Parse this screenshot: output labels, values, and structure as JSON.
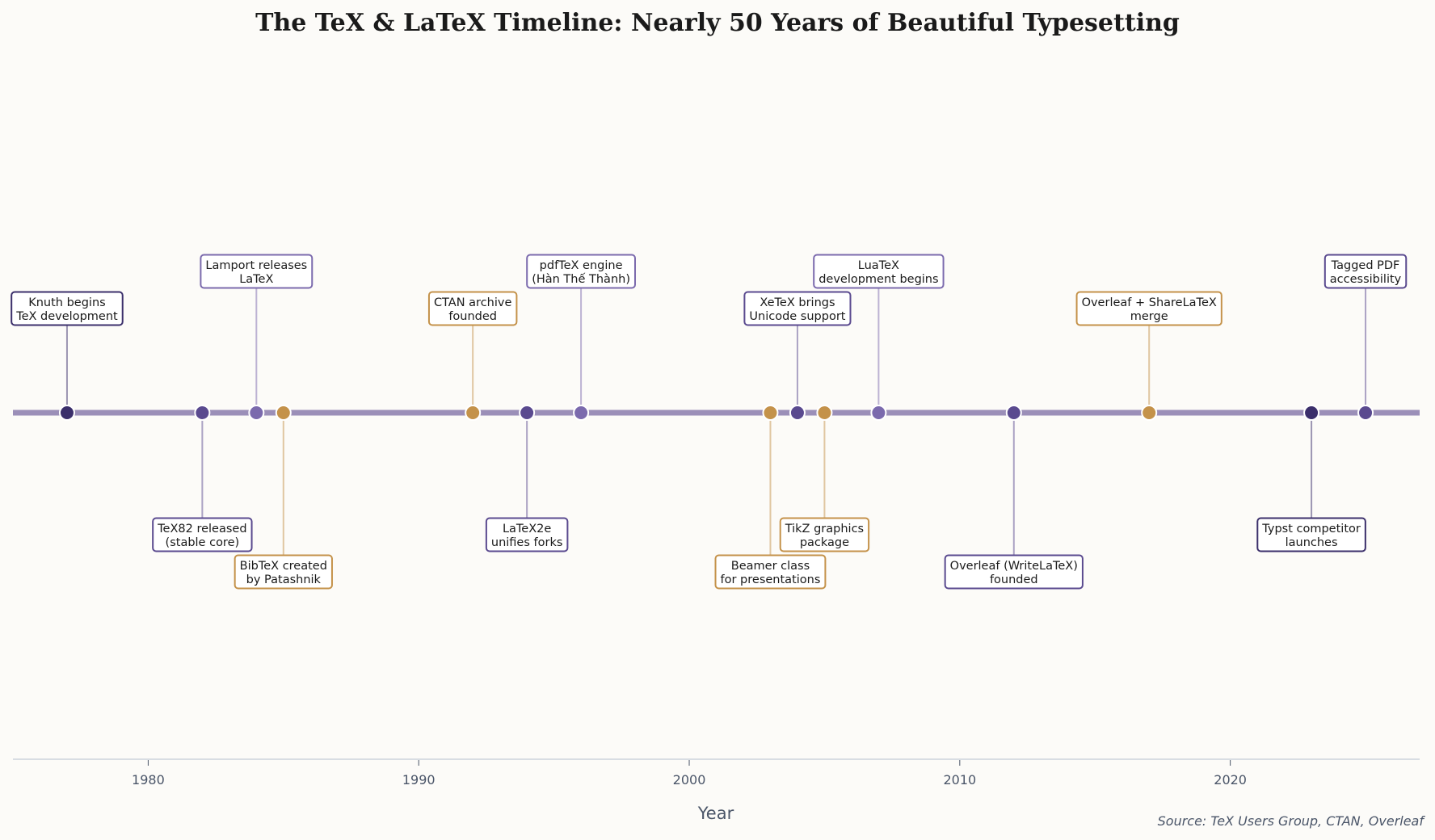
{
  "chart_data": {
    "type": "timeline",
    "title": "The TeX & LaTeX Timeline: Nearly 50 Years of Beautiful Typesetting",
    "xlabel": "Year",
    "source": "Source: TeX Users Group, CTAN, Overleaf",
    "xlim": [
      1975,
      2027
    ],
    "xticks": [
      1980,
      1990,
      2000,
      2010,
      2020
    ],
    "grid": false,
    "colors": {
      "timeline": "#9b8fb8",
      "dark": "#3b2f6b",
      "medium": "#5a4a8f",
      "light": "#7b6aad",
      "gold": "#c4924a",
      "background": "#fcfbf8"
    },
    "events": [
      {
        "year": 1977,
        "label": [
          "Knuth begins",
          "TeX development"
        ],
        "side": "above",
        "tier": 1,
        "color": "dark"
      },
      {
        "year": 1982,
        "label": [
          "TeX82 released",
          "(stable core)"
        ],
        "side": "below",
        "tier": 1,
        "color": "medium"
      },
      {
        "year": 1984,
        "label": [
          "Lamport releases",
          "LaTeX"
        ],
        "side": "above",
        "tier": 2,
        "color": "light"
      },
      {
        "year": 1985,
        "label": [
          "BibTeX created",
          "by Patashnik"
        ],
        "side": "below",
        "tier": 2,
        "color": "gold"
      },
      {
        "year": 1992,
        "label": [
          "CTAN archive",
          "founded"
        ],
        "side": "above",
        "tier": 1,
        "color": "gold"
      },
      {
        "year": 1994,
        "label": [
          "LaTeX2e",
          "unifies forks"
        ],
        "side": "below",
        "tier": 1,
        "color": "medium"
      },
      {
        "year": 1996,
        "label": [
          "pdfTeX engine",
          "(Hàn Thế Thành)"
        ],
        "side": "above",
        "tier": 2,
        "color": "light"
      },
      {
        "year": 2003,
        "label": [
          "Beamer class",
          "for presentations"
        ],
        "side": "below",
        "tier": 2,
        "color": "gold"
      },
      {
        "year": 2004,
        "label": [
          "XeTeX brings",
          "Unicode support"
        ],
        "side": "above",
        "tier": 1,
        "color": "medium"
      },
      {
        "year": 2005,
        "label": [
          "TikZ graphics",
          "package"
        ],
        "side": "below",
        "tier": 1,
        "color": "gold"
      },
      {
        "year": 2007,
        "label": [
          "LuaTeX",
          "development begins"
        ],
        "side": "above",
        "tier": 2,
        "color": "light"
      },
      {
        "year": 2012,
        "label": [
          "Overleaf (WriteLaTeX)",
          "founded"
        ],
        "side": "below",
        "tier": 2,
        "color": "medium"
      },
      {
        "year": 2017,
        "label": [
          "Overleaf + ShareLaTeX",
          "merge"
        ],
        "side": "above",
        "tier": 1,
        "color": "gold"
      },
      {
        "year": 2023,
        "label": [
          "Typst competitor",
          "launches"
        ],
        "side": "below",
        "tier": 1,
        "color": "dark"
      },
      {
        "year": 2025,
        "label": [
          "Tagged PDF",
          "accessibility"
        ],
        "side": "above",
        "tier": 2,
        "color": "medium"
      }
    ]
  }
}
